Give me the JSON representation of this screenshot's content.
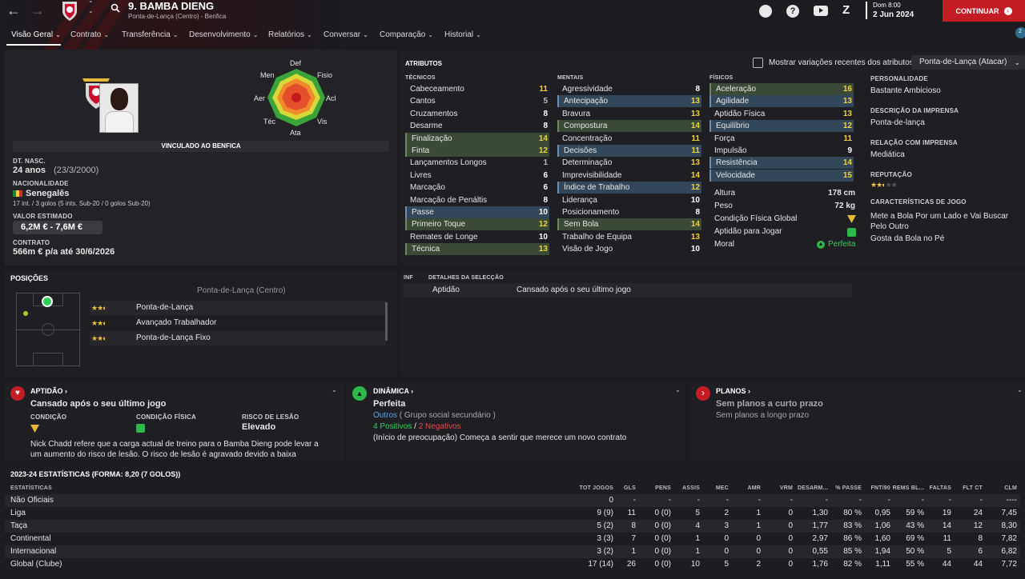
{
  "header": {
    "player_name": "9. BAMBA DIENG",
    "subtitle": "Ponta-de-Lança (Centro) - Benfica",
    "day": "Dom 8:00",
    "date": "2 Jun 2024",
    "continue_label": "CONTINUAR",
    "badge_count": "2"
  },
  "tabs": [
    "Visão Geral",
    "Contrato",
    "Transferência",
    "Desenvolvimento",
    "Relatórios",
    "Conversar",
    "Comparação",
    "Historial"
  ],
  "profile": {
    "club_status": "VINCULADO AO BENFICA",
    "dob_label": "DT. NASC.",
    "age": "24 anos",
    "dob": "(23/3/2000)",
    "nationality_label": "NACIONALIDADE",
    "nationality": "Senegalês",
    "caps": "17 int. / 3 golos (5 ints. Sub-20 / 0 golos Sub-20)",
    "value_label": "VALOR ESTIMADO",
    "value": "6,2M € - 7,6M €",
    "contract_label": "CONTRATO",
    "contract": "566m € p/a até 30/6/2026"
  },
  "radar": {
    "def": "Def",
    "men": "Men",
    "fisio": "Fisio",
    "aer": "Aer",
    "acl": "Acl",
    "tec": "Téc",
    "vis": "Vis",
    "ata": "Ata"
  },
  "attributes": {
    "title": "ATRIBUTOS",
    "show_variations": "Mostrar variações recentes dos atributos",
    "role_select": "Ponta-de-Lança (Atacar)",
    "tech_label": "TÉCNICOS",
    "mental_label": "MENTAIS",
    "physical_label": "FÍSICOS",
    "technical": [
      [
        "Cabeceamento",
        "11"
      ],
      [
        "Cantos",
        "5"
      ],
      [
        "Cruzamentos",
        "8"
      ],
      [
        "Desarme",
        "8"
      ],
      [
        "Finalização",
        "14"
      ],
      [
        "Finta",
        "12"
      ],
      [
        "Lançamentos Longos",
        "1"
      ],
      [
        "Livres",
        "6"
      ],
      [
        "Marcação",
        "6"
      ],
      [
        "Marcação de Penáltis",
        "8"
      ],
      [
        "Passe",
        "10"
      ],
      [
        "Primeiro Toque",
        "12"
      ],
      [
        "Remates de Longe",
        "10"
      ],
      [
        "Técnica",
        "13"
      ]
    ],
    "mental": [
      [
        "Agressividade",
        "8"
      ],
      [
        "Antecipação",
        "13"
      ],
      [
        "Bravura",
        "13"
      ],
      [
        "Compostura",
        "14"
      ],
      [
        "Concentração",
        "11"
      ],
      [
        "Decisões",
        "11"
      ],
      [
        "Determinação",
        "13"
      ],
      [
        "Imprevisibilidade",
        "14"
      ],
      [
        "Índice de Trabalho",
        "12"
      ],
      [
        "Liderança",
        "10"
      ],
      [
        "Posicionamento",
        "8"
      ],
      [
        "Sem Bola",
        "14"
      ],
      [
        "Trabalho de Equipa",
        "13"
      ],
      [
        "Visão de Jogo",
        "10"
      ]
    ],
    "physical": [
      [
        "Aceleração",
        "16"
      ],
      [
        "Agilidade",
        "13"
      ],
      [
        "Aptidão Física",
        "13"
      ],
      [
        "Equilíbrio",
        "12"
      ],
      [
        "Força",
        "11"
      ],
      [
        "Impulsão",
        "9"
      ],
      [
        "Resistência",
        "14"
      ],
      [
        "Velocidade",
        "15"
      ]
    ],
    "height_label": "Altura",
    "height": "178 cm",
    "weight_label": "Peso",
    "weight": "72 kg",
    "cond_label": "Condição Física Global",
    "fit_label": "Aptidão para Jogar",
    "morale_label": "Moral",
    "morale": "Perfeita"
  },
  "personality": {
    "p_label": "PERSONALIDADE",
    "p": "Bastante Ambicioso",
    "press_desc_label": "DESCRIÇÃO DA IMPRENSA",
    "press_desc": "Ponta-de-lança",
    "press_rel_label": "RELAÇÃO COM IMPRENSA",
    "press_rel": "Mediática",
    "rep_label": "REPUTAÇÃO",
    "traits_label": "CARACTERÍSTICAS DE JOGO",
    "trait1": "Mete a Bola Por um Lado e Vai Buscar Pelo Outro",
    "trait2": "Gosta da Bola no Pé"
  },
  "positions": {
    "title": "POSIÇÕES",
    "current": "Ponta-de-Lança (Centro)",
    "roles": [
      "Ponta-de-Lança",
      "Avançado Trabalhador",
      "Ponta-de-Lança Fixo"
    ]
  },
  "selection": {
    "inf": "INF",
    "title": "DETALHES DA SELECÇÃO",
    "aptidao": "Aptidão",
    "status": "Cansado após o seu último jogo"
  },
  "fitness_card": {
    "title": "APTIDÃO",
    "headline": "Cansado após o seu último jogo",
    "cond_label": "CONDIÇÃO",
    "phys_label": "CONDIÇÃO FÍSICA",
    "risk_label": "RISCO DE LESÃO",
    "risk": "Elevado",
    "note": "Nick Chadd refere que a carga actual de treino para o Bamba Dieng pode levar a um aumento do risco de lesão. O risco de lesão é agravado devido a baixa Condição Física."
  },
  "dynamics_card": {
    "title": "DINÂMICA",
    "headline": "Perfeita",
    "group": "Outros",
    "group_desc": "( Grupo social secundário )",
    "pos": "4 Positivos",
    "sep": "/",
    "neg": "2 Negativos",
    "note": "(Início de preocupação) Começa a sentir que merece um novo contrato"
  },
  "plans_card": {
    "title": "PLANOS",
    "short": "Sem planos a curto prazo",
    "long": "Sem planos a longo prazo"
  },
  "stats": {
    "title": "2023-24 ESTATÍSTICAS (FORMA: 8,20 (7 GOLOS))",
    "headers": [
      "ESTATÍSTICAS",
      "TOT JOGOS",
      "GLS",
      "PENS",
      "ASSIS",
      "MEC",
      "AMR",
      "VRM",
      "DESARM...",
      "% PASSE",
      "FNT/90",
      "REMS BL...",
      "FALTAS",
      "FLT CT",
      "CLM"
    ],
    "rows": [
      [
        "Não Oficiais",
        "0",
        "-",
        "-",
        "-",
        "-",
        "-",
        "-",
        "-",
        "-",
        "-",
        "-",
        "-",
        "-",
        "----"
      ],
      [
        "Liga",
        "9 (9)",
        "11",
        "0 (0)",
        "5",
        "2",
        "1",
        "0",
        "1,30",
        "80 %",
        "0,95",
        "59 %",
        "19",
        "24",
        "7,45"
      ],
      [
        "Taça",
        "5 (2)",
        "8",
        "0 (0)",
        "4",
        "3",
        "1",
        "0",
        "1,77",
        "83 %",
        "1,06",
        "43 %",
        "14",
        "12",
        "8,30"
      ],
      [
        "Continental",
        "3 (3)",
        "7",
        "0 (0)",
        "1",
        "0",
        "0",
        "0",
        "2,97",
        "86 %",
        "1,60",
        "69 %",
        "11",
        "8",
        "7,82"
      ],
      [
        "Internacional",
        "3 (2)",
        "1",
        "0 (0)",
        "1",
        "0",
        "0",
        "0",
        "0,55",
        "85 %",
        "1,94",
        "50 %",
        "5",
        "6",
        "6,82"
      ],
      [
        "Global (Clube)",
        "17 (14)",
        "26",
        "0 (0)",
        "10",
        "5",
        "2",
        "0",
        "1,76",
        "82 %",
        "1,11",
        "55 %",
        "44",
        "44",
        "7,72"
      ]
    ]
  }
}
